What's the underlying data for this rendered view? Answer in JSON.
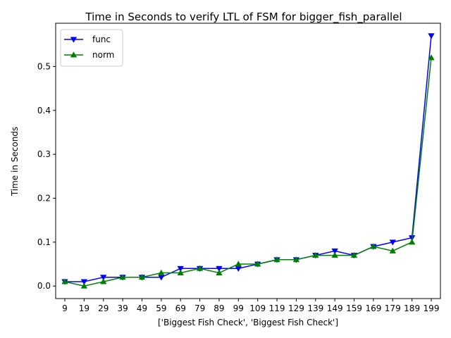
{
  "chart_data": {
    "type": "line",
    "title": "Time in Seconds to verify LTL of FSM for bigger_fish_parallel",
    "xlabel": "['Biggest Fish Check', 'Biggest Fish Check']",
    "ylabel": "Time in Seconds",
    "categories": [
      "9",
      "19",
      "29",
      "39",
      "49",
      "59",
      "69",
      "79",
      "89",
      "99",
      "109",
      "119",
      "129",
      "139",
      "149",
      "159",
      "169",
      "179",
      "189",
      "199"
    ],
    "ylim": [
      -0.0285,
      0.5985
    ],
    "yticks": [
      0.0,
      0.1,
      0.2,
      0.3,
      0.4,
      0.5
    ],
    "ytick_labels": [
      "0.0",
      "0.1",
      "0.2",
      "0.3",
      "0.4",
      "0.5"
    ],
    "grid": false,
    "legend_position": "top-left",
    "series": [
      {
        "name": "func",
        "color": "#0000ff",
        "marker": "triangle-down",
        "values": [
          0.01,
          0.01,
          0.02,
          0.02,
          0.02,
          0.02,
          0.04,
          0.04,
          0.04,
          0.04,
          0.05,
          0.06,
          0.06,
          0.07,
          0.08,
          0.07,
          0.09,
          0.1,
          0.11,
          0.57
        ]
      },
      {
        "name": "norm",
        "color": "#008000",
        "marker": "triangle-up",
        "values": [
          0.01,
          0.0,
          0.01,
          0.02,
          0.02,
          0.03,
          0.03,
          0.04,
          0.03,
          0.05,
          0.05,
          0.06,
          0.06,
          0.07,
          0.07,
          0.07,
          0.09,
          0.08,
          0.1,
          0.52
        ]
      }
    ]
  }
}
